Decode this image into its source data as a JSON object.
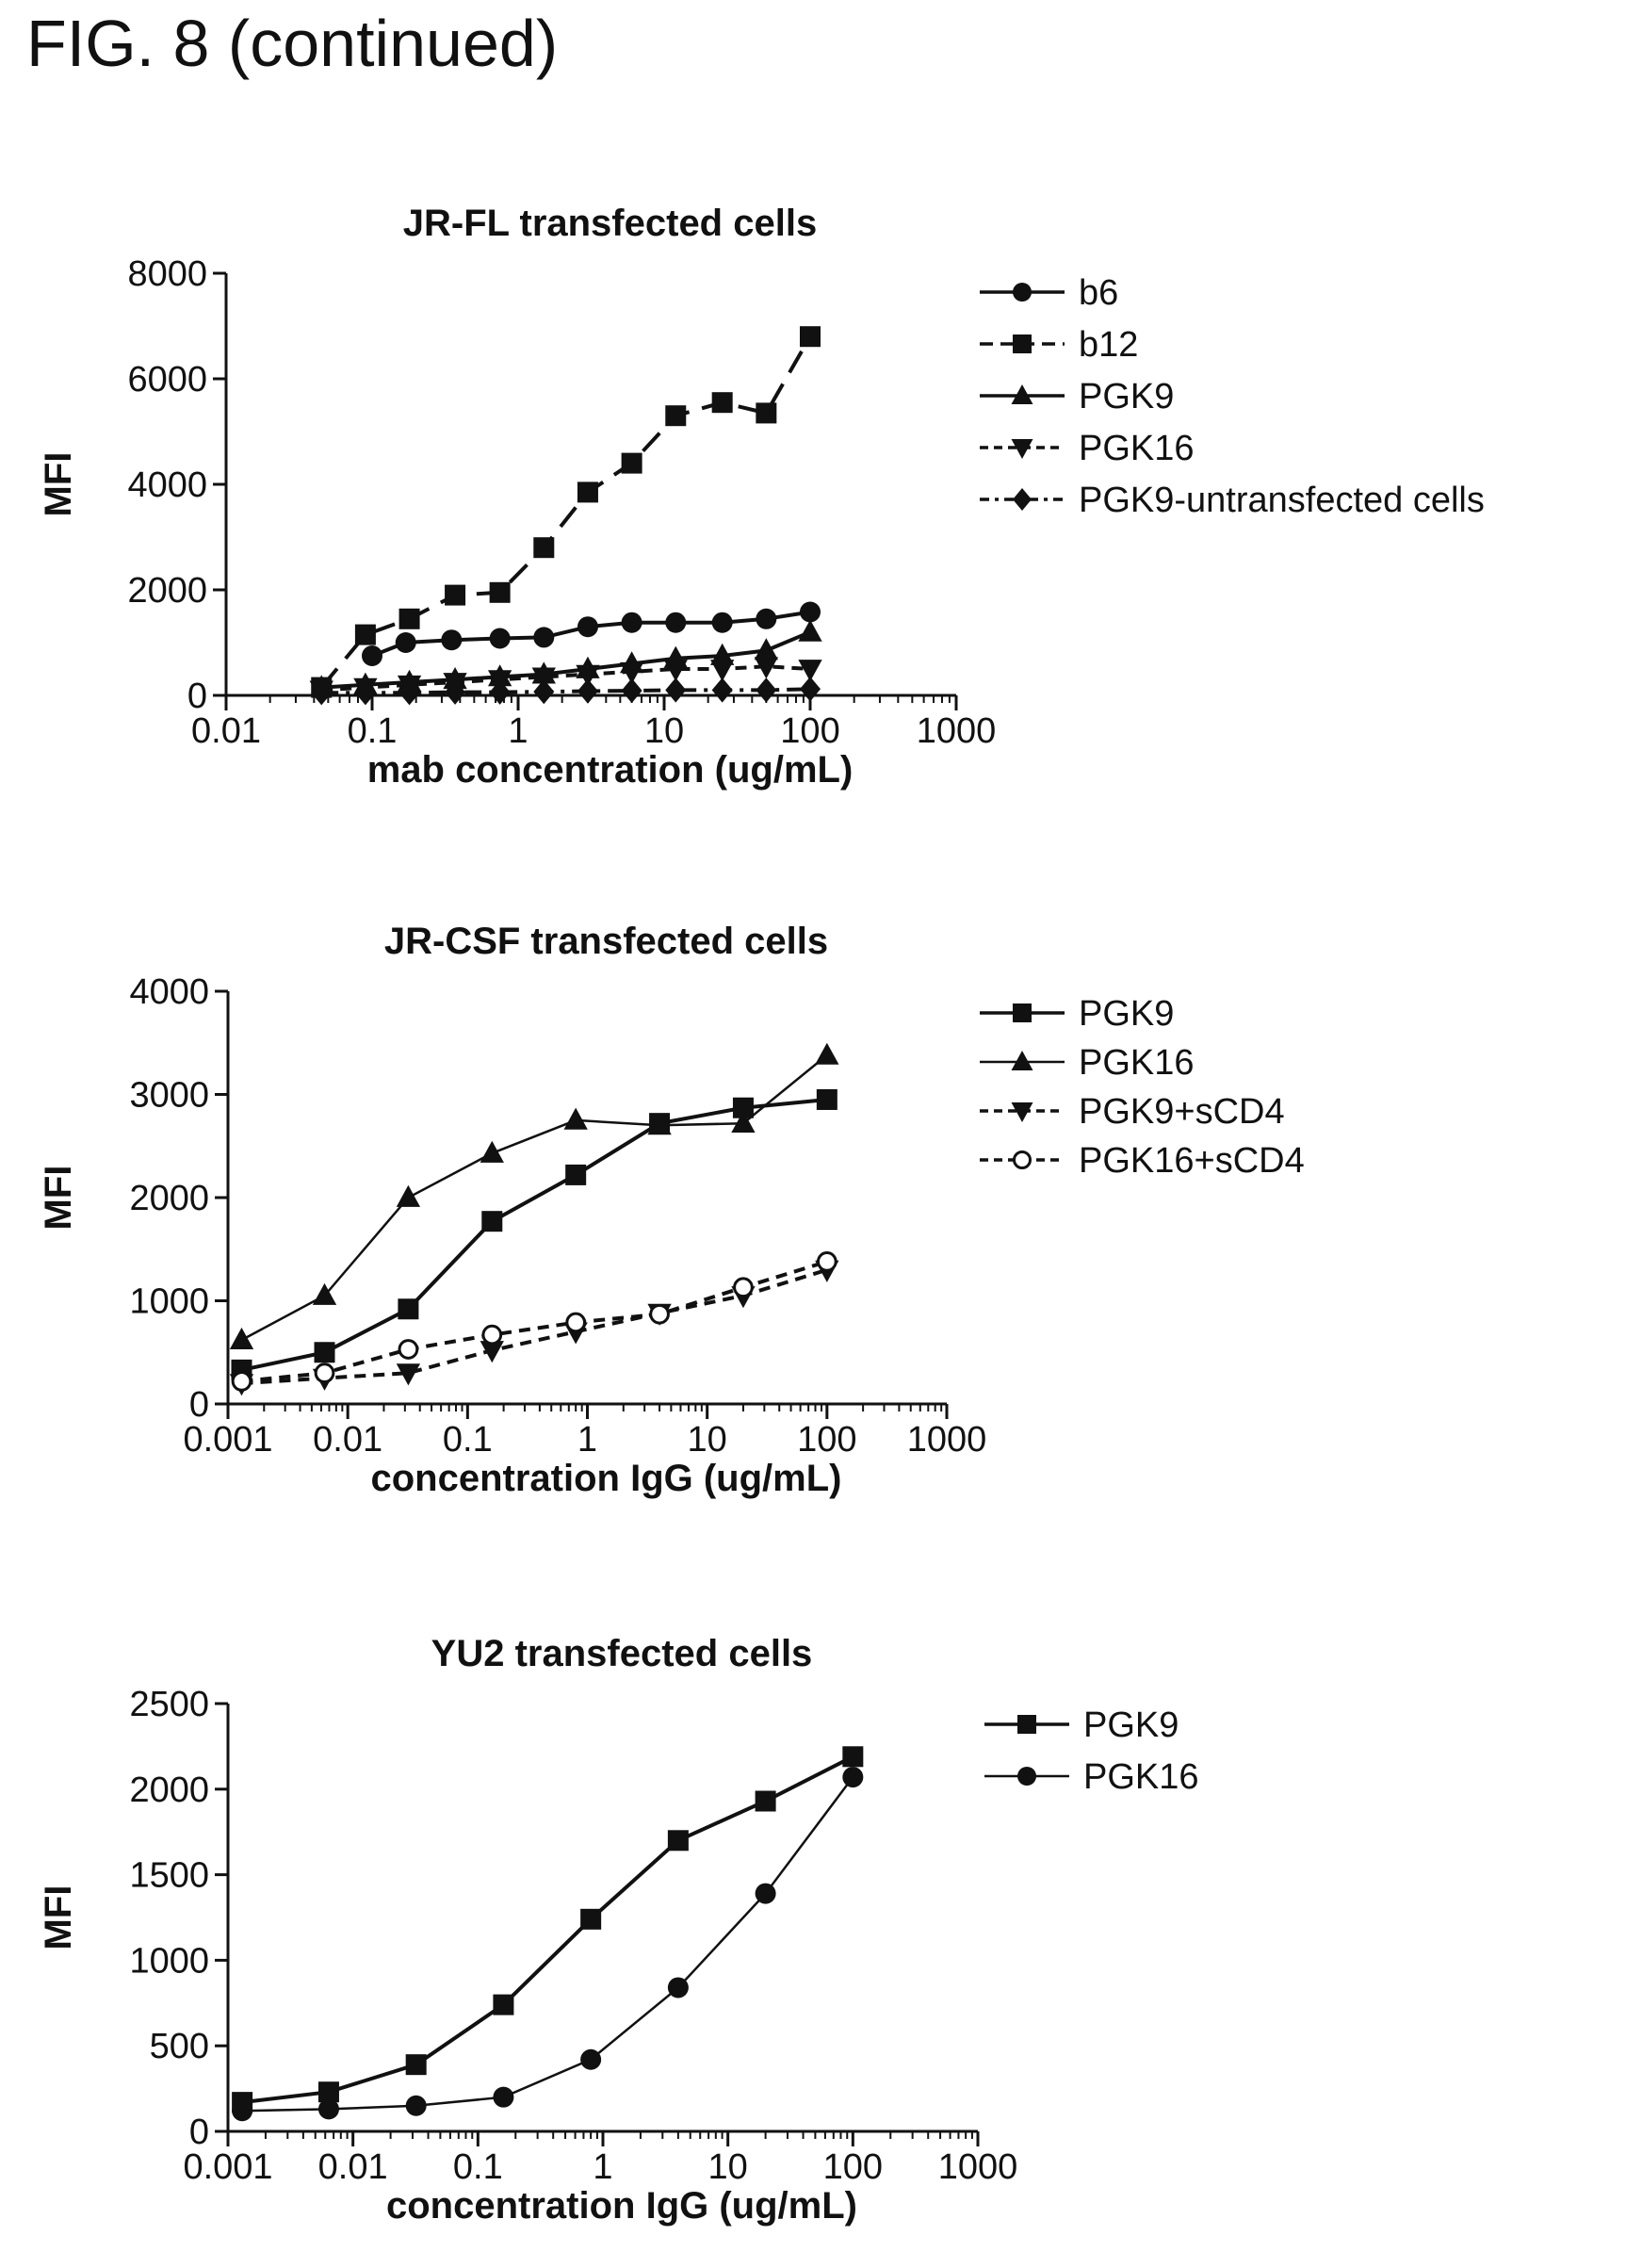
{
  "figure": {
    "title": "FIG. 8 (continued)"
  },
  "chart_data": [
    {
      "type": "line",
      "title": "JR-FL transfected cells",
      "xlabel": "mab concentration (ug/mL)",
      "ylabel": "MFI",
      "xscale": "log",
      "xlim": [
        0.01,
        1000
      ],
      "ylim": [
        0,
        8000
      ],
      "xticks": [
        0.01,
        0.1,
        1,
        10,
        100,
        1000
      ],
      "xtick_labels": [
        "0.01",
        "0.1",
        "1",
        "10",
        "100",
        "1000"
      ],
      "yticks": [
        0,
        2000,
        4000,
        6000,
        8000
      ],
      "ytick_labels": [
        "0",
        "2000",
        "4000",
        "6000",
        "8000"
      ],
      "grid": false,
      "legend_position": "right",
      "series": [
        {
          "name": "b6",
          "marker": "circle",
          "dash": "solid",
          "x": [
            0.1,
            0.17,
            0.35,
            0.75,
            1.5,
            3,
            6,
            12,
            25,
            50,
            100
          ],
          "y": [
            750,
            1000,
            1050,
            1080,
            1100,
            1300,
            1380,
            1380,
            1380,
            1450,
            1580
          ]
        },
        {
          "name": "b12",
          "marker": "square",
          "dash": "long",
          "x": [
            0.045,
            0.09,
            0.18,
            0.37,
            0.75,
            1.5,
            3,
            6,
            12,
            25,
            50,
            100
          ],
          "y": [
            150,
            1150,
            1450,
            1900,
            1950,
            2800,
            3850,
            4400,
            5300,
            5550,
            5350,
            6800
          ]
        },
        {
          "name": "PGK9",
          "marker": "triangle-up",
          "dash": "solid",
          "x": [
            0.045,
            0.09,
            0.18,
            0.37,
            0.75,
            1.5,
            3,
            6,
            12,
            25,
            50,
            100
          ],
          "y": [
            150,
            200,
            250,
            300,
            350,
            400,
            500,
            600,
            700,
            750,
            850,
            1200
          ]
        },
        {
          "name": "PGK16",
          "marker": "triangle-down",
          "dash": "short",
          "x": [
            0.045,
            0.09,
            0.18,
            0.37,
            0.75,
            1.5,
            3,
            6,
            12,
            25,
            50,
            100
          ],
          "y": [
            100,
            150,
            200,
            250,
            300,
            350,
            400,
            450,
            500,
            500,
            550,
            500
          ]
        },
        {
          "name": "PGK9-untransfected cells",
          "marker": "diamond",
          "dash": "dashdot",
          "x": [
            0.045,
            0.09,
            0.18,
            0.37,
            0.75,
            1.5,
            3,
            6,
            12,
            25,
            50,
            100
          ],
          "y": [
            50,
            50,
            50,
            60,
            60,
            70,
            80,
            90,
            100,
            100,
            100,
            120
          ]
        }
      ]
    },
    {
      "type": "line",
      "title": "JR-CSF transfected cells",
      "xlabel": "concentration IgG (ug/mL)",
      "ylabel": "MFI",
      "xscale": "log",
      "xlim": [
        0.001,
        1000
      ],
      "ylim": [
        0,
        4000
      ],
      "xticks": [
        0.001,
        0.01,
        0.1,
        1,
        10,
        100,
        1000
      ],
      "xtick_labels": [
        "0.001",
        "0.01",
        "0.1",
        "1",
        "10",
        "100",
        "1000"
      ],
      "yticks": [
        0,
        1000,
        2000,
        3000,
        4000
      ],
      "ytick_labels": [
        "0",
        "1000",
        "2000",
        "3000",
        "4000"
      ],
      "grid": false,
      "legend_position": "right",
      "series": [
        {
          "name": "PGK9",
          "marker": "square",
          "dash": "solid",
          "x": [
            0.0013,
            0.0064,
            0.032,
            0.16,
            0.8,
            4,
            20,
            100
          ],
          "y": [
            330,
            500,
            920,
            1770,
            2220,
            2720,
            2870,
            2950
          ]
        },
        {
          "name": "PGK16",
          "marker": "triangle-up",
          "dash": "solid-thin",
          "x": [
            0.0013,
            0.0064,
            0.032,
            0.16,
            0.8,
            4,
            20,
            100
          ],
          "y": [
            620,
            1050,
            2000,
            2430,
            2750,
            2700,
            2720,
            3380
          ]
        },
        {
          "name": "PGK9+sCD4",
          "marker": "triangle-down",
          "dash": "short",
          "x": [
            0.0013,
            0.0064,
            0.032,
            0.16,
            0.8,
            4,
            20,
            100
          ],
          "y": [
            200,
            250,
            300,
            520,
            700,
            880,
            1050,
            1300
          ]
        },
        {
          "name": "PGK16+sCD4",
          "marker": "circle-open",
          "dash": "short",
          "x": [
            0.0013,
            0.0064,
            0.032,
            0.16,
            0.8,
            4,
            20,
            100
          ],
          "y": [
            220,
            300,
            530,
            670,
            790,
            870,
            1130,
            1380
          ]
        }
      ]
    },
    {
      "type": "line",
      "title": "YU2 transfected cells",
      "xlabel": "concentration IgG (ug/mL)",
      "ylabel": "MFI",
      "xscale": "log",
      "xlim": [
        0.001,
        1000
      ],
      "ylim": [
        0,
        2500
      ],
      "xticks": [
        0.001,
        0.01,
        0.1,
        1,
        10,
        100,
        1000
      ],
      "xtick_labels": [
        "0.001",
        "0.01",
        "0.1",
        "1",
        "10",
        "100",
        "1000"
      ],
      "yticks": [
        0,
        500,
        1000,
        1500,
        2000,
        2500
      ],
      "ytick_labels": [
        "0",
        "500",
        "1000",
        "1500",
        "2000",
        "2500"
      ],
      "grid": false,
      "legend_position": "right",
      "series": [
        {
          "name": "PGK9",
          "marker": "square",
          "dash": "solid",
          "x": [
            0.0013,
            0.0064,
            0.032,
            0.16,
            0.8,
            4,
            20,
            100
          ],
          "y": [
            170,
            230,
            390,
            740,
            1240,
            1700,
            1930,
            2190
          ]
        },
        {
          "name": "PGK16",
          "marker": "circle",
          "dash": "solid-thin",
          "x": [
            0.0013,
            0.0064,
            0.032,
            0.16,
            0.8,
            4,
            20,
            100
          ],
          "y": [
            120,
            130,
            150,
            200,
            420,
            840,
            1390,
            2070
          ]
        }
      ]
    }
  ]
}
